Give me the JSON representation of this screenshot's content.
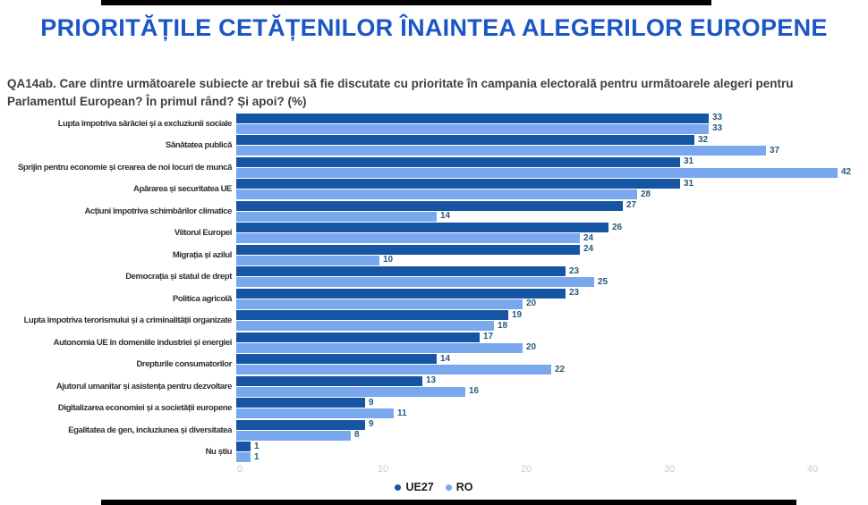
{
  "header": {
    "title": "PRIORITĂȚILE CETĂȚENILOR ÎNAINTEA ALEGERILOR EUROPENE",
    "subtitle": "QA14ab. Care dintre următoarele subiecte ar trebui să fie discutate cu prioritate în campania electorală pentru următoarele alegeri pentru Parlamentul European? În primul rând? Și apoi? (%)"
  },
  "colors": {
    "title_blue": "#1B57C4",
    "ue27_bar": "#1655A3",
    "ro_bar": "#7AA8EF",
    "value_label": "#255B80",
    "axis_tick": "#CBCBCB"
  },
  "chart_data": {
    "type": "bar",
    "orientation": "horizontal",
    "title": "PRIORITĂȚILE CETĂȚENILOR ÎNAINTEA ALEGERILOR EUROPENE",
    "xlabel": "",
    "ylabel": "",
    "xlim": [
      0,
      44
    ],
    "x_ticks": [
      0,
      10,
      20,
      30,
      40
    ],
    "grid": false,
    "legend_position": "bottom",
    "categories": [
      "Lupta împotriva sărăciei și a excluziunii sociale",
      "Sănătatea publică",
      "Sprijin pentru economie și crearea de noi locuri de muncă",
      "Apărarea și securitatea UE",
      "Acțiuni împotriva schimbărilor climatice",
      "Viitorul Europei",
      "Migrația și azilul",
      "Democrația și statul de drept",
      "Politica agricolă",
      "Lupta împotriva terorismului și a criminalității organizate",
      "Autonomia UE în domeniile industriei și energiei",
      "Drepturile consumatorilor",
      "Ajutorul umanitar și asistența pentru dezvoltare",
      "Digitalizarea economiei și a societății europene",
      "Egalitatea de gen, incluziunea și diversitatea",
      "Nu știu"
    ],
    "series": [
      {
        "name": "UE27",
        "color": "#1655A3",
        "values": [
          33,
          32,
          31,
          31,
          27,
          26,
          24,
          23,
          23,
          19,
          17,
          14,
          13,
          9,
          9,
          1
        ]
      },
      {
        "name": "RO",
        "color": "#7AA8EF",
        "values": [
          33,
          37,
          42,
          28,
          14,
          24,
          10,
          25,
          20,
          18,
          20,
          22,
          16,
          11,
          8,
          1
        ]
      }
    ]
  }
}
